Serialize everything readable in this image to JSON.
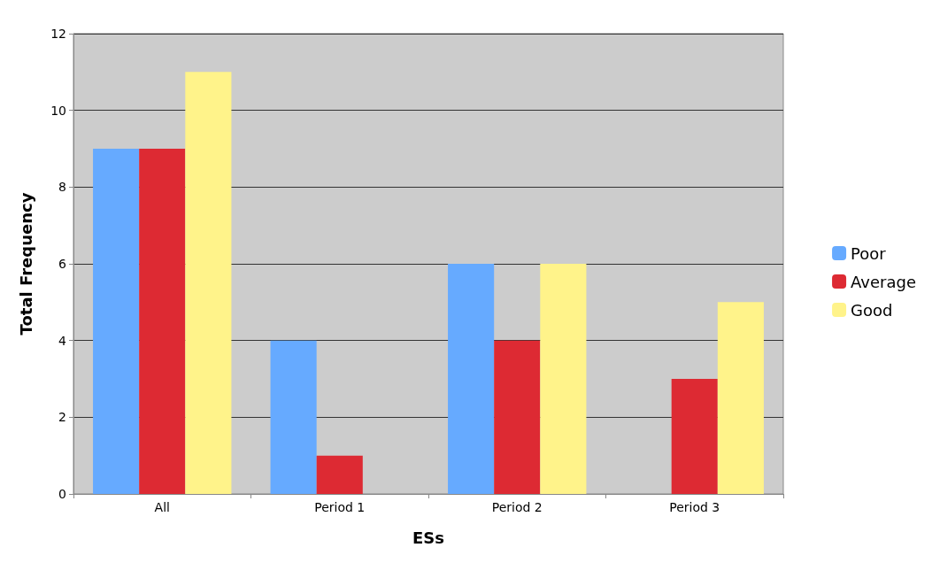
{
  "chart_data": {
    "type": "bar",
    "xlabel": "ESs",
    "ylabel": "Total Frequency",
    "categories": [
      "All",
      "Period 1",
      "Period 2",
      "Period 3"
    ],
    "series": [
      {
        "name": "Poor",
        "color": "#66aaff",
        "values": [
          9,
          4,
          6,
          0
        ]
      },
      {
        "name": "Average",
        "color": "#dd2a33",
        "values": [
          9,
          1,
          4,
          3
        ]
      },
      {
        "name": "Good",
        "color": "#fff38a",
        "values": [
          11,
          0,
          6,
          5
        ]
      }
    ],
    "ylim": [
      0,
      12
    ],
    "yticks": [
      0,
      2,
      4,
      6,
      8,
      10,
      12
    ],
    "grid": "y",
    "legend": "right"
  }
}
